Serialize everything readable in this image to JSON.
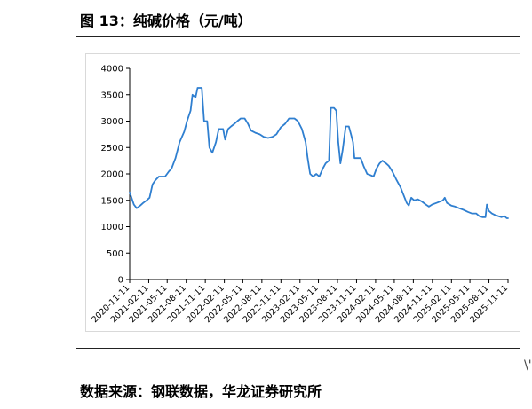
{
  "header": {
    "title": "图 13：纯碱价格（元/吨）"
  },
  "footer": {
    "source": "数据来源：钢联数据，华龙证券研究所"
  },
  "colors": {
    "line": "#2f7fd0",
    "axis": "#000000",
    "frame": "#d9d9d9"
  },
  "chart_data": {
    "type": "line",
    "title": "",
    "xlabel": "",
    "ylabel": "",
    "ylim": [
      0,
      4000
    ],
    "yticks": [
      0,
      500,
      1000,
      1500,
      2000,
      2500,
      3000,
      3500,
      4000
    ],
    "grid": false,
    "legend": "none",
    "xticks": [
      "2020-11-11",
      "2021-02-11",
      "2021-05-11",
      "2021-08-11",
      "2021-11-11",
      "2022-02-11",
      "2022-05-11",
      "2022-08-11",
      "2022-11-11",
      "2023-02-11",
      "2023-05-11",
      "2023-08-11",
      "2023-11-11",
      "2024-02-11",
      "2024-05-11",
      "2024-08-11",
      "2024-11-11",
      "2025-02-11",
      "2025-05-11",
      "2025-08-11",
      "2025-11-11"
    ],
    "series": [
      {
        "name": "",
        "points": [
          [
            "2020-11-11",
            1650
          ],
          [
            "2020-11-20",
            1550
          ],
          [
            "2020-12-01",
            1420
          ],
          [
            "2020-12-15",
            1350
          ],
          [
            "2021-01-01",
            1400
          ],
          [
            "2021-01-15",
            1450
          ],
          [
            "2021-02-01",
            1500
          ],
          [
            "2021-02-15",
            1550
          ],
          [
            "2021-03-01",
            1800
          ],
          [
            "2021-03-15",
            1880
          ],
          [
            "2021-04-01",
            1950
          ],
          [
            "2021-05-01",
            1950
          ],
          [
            "2021-05-20",
            2050
          ],
          [
            "2021-06-01",
            2100
          ],
          [
            "2021-06-20",
            2300
          ],
          [
            "2021-07-10",
            2600
          ],
          [
            "2021-08-01",
            2800
          ],
          [
            "2021-08-15",
            3000
          ],
          [
            "2021-09-01",
            3200
          ],
          [
            "2021-09-10",
            3500
          ],
          [
            "2021-09-25",
            3450
          ],
          [
            "2021-10-05",
            3630
          ],
          [
            "2021-10-25",
            3630
          ],
          [
            "2021-11-05",
            3000
          ],
          [
            "2021-11-20",
            3000
          ],
          [
            "2021-12-01",
            2500
          ],
          [
            "2021-12-15",
            2400
          ],
          [
            "2022-01-01",
            2600
          ],
          [
            "2022-01-15",
            2850
          ],
          [
            "2022-02-05",
            2850
          ],
          [
            "2022-02-15",
            2650
          ],
          [
            "2022-03-01",
            2850
          ],
          [
            "2022-03-15",
            2900
          ],
          [
            "2022-04-01",
            2950
          ],
          [
            "2022-04-15",
            3000
          ],
          [
            "2022-05-01",
            3050
          ],
          [
            "2022-05-20",
            3050
          ],
          [
            "2022-06-05",
            2950
          ],
          [
            "2022-06-20",
            2820
          ],
          [
            "2022-07-10",
            2780
          ],
          [
            "2022-08-01",
            2750
          ],
          [
            "2022-08-20",
            2700
          ],
          [
            "2022-09-10",
            2680
          ],
          [
            "2022-10-01",
            2700
          ],
          [
            "2022-10-20",
            2750
          ],
          [
            "2022-11-10",
            2880
          ],
          [
            "2022-12-01",
            2950
          ],
          [
            "2022-12-20",
            3050
          ],
          [
            "2023-01-15",
            3050
          ],
          [
            "2023-02-01",
            3000
          ],
          [
            "2023-02-20",
            2850
          ],
          [
            "2023-03-10",
            2600
          ],
          [
            "2023-03-20",
            2300
          ],
          [
            "2023-04-01",
            2000
          ],
          [
            "2023-04-15",
            1950
          ],
          [
            "2023-05-01",
            2000
          ],
          [
            "2023-05-15",
            1950
          ],
          [
            "2023-06-01",
            2100
          ],
          [
            "2023-06-15",
            2200
          ],
          [
            "2023-07-01",
            2250
          ],
          [
            "2023-07-10",
            3250
          ],
          [
            "2023-07-25",
            3250
          ],
          [
            "2023-08-05",
            3200
          ],
          [
            "2023-08-15",
            2600
          ],
          [
            "2023-08-25",
            2200
          ],
          [
            "2023-09-05",
            2450
          ],
          [
            "2023-09-20",
            2900
          ],
          [
            "2023-10-05",
            2900
          ],
          [
            "2023-10-15",
            2750
          ],
          [
            "2023-10-25",
            2600
          ],
          [
            "2023-11-01",
            2300
          ],
          [
            "2023-11-15",
            2300
          ],
          [
            "2023-12-01",
            2300
          ],
          [
            "2023-12-15",
            2150
          ],
          [
            "2024-01-01",
            2000
          ],
          [
            "2024-01-15",
            1980
          ],
          [
            "2024-02-01",
            1950
          ],
          [
            "2024-02-15",
            2100
          ],
          [
            "2024-03-01",
            2200
          ],
          [
            "2024-03-15",
            2250
          ],
          [
            "2024-04-01",
            2200
          ],
          [
            "2024-04-15",
            2150
          ],
          [
            "2024-05-01",
            2050
          ],
          [
            "2024-05-20",
            1900
          ],
          [
            "2024-06-10",
            1750
          ],
          [
            "2024-06-25",
            1600
          ],
          [
            "2024-07-10",
            1450
          ],
          [
            "2024-07-20",
            1400
          ],
          [
            "2024-08-01",
            1550
          ],
          [
            "2024-08-15",
            1500
          ],
          [
            "2024-09-01",
            1520
          ],
          [
            "2024-09-20",
            1480
          ],
          [
            "2024-10-10",
            1420
          ],
          [
            "2024-10-25",
            1380
          ],
          [
            "2024-11-10",
            1420
          ],
          [
            "2024-12-01",
            1450
          ],
          [
            "2024-12-20",
            1480
          ],
          [
            "2025-01-01",
            1500
          ],
          [
            "2025-01-10",
            1550
          ],
          [
            "2025-01-20",
            1450
          ],
          [
            "2025-02-10",
            1400
          ],
          [
            "2025-03-01",
            1380
          ],
          [
            "2025-03-20",
            1350
          ],
          [
            "2025-04-10",
            1320
          ],
          [
            "2025-05-01",
            1280
          ],
          [
            "2025-05-20",
            1250
          ],
          [
            "2025-06-10",
            1250
          ],
          [
            "2025-06-25",
            1200
          ],
          [
            "2025-07-10",
            1180
          ],
          [
            "2025-07-25",
            1180
          ],
          [
            "2025-08-01",
            1420
          ],
          [
            "2025-08-10",
            1300
          ],
          [
            "2025-08-25",
            1250
          ],
          [
            "2025-09-10",
            1220
          ],
          [
            "2025-09-25",
            1200
          ],
          [
            "2025-10-10",
            1180
          ],
          [
            "2025-10-25",
            1200
          ],
          [
            "2025-11-05",
            1160
          ],
          [
            "2025-11-11",
            1160
          ]
        ]
      }
    ]
  }
}
